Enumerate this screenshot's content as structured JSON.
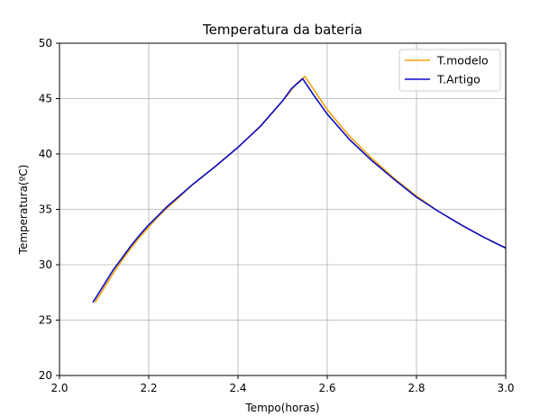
{
  "chart_data": {
    "type": "line",
    "title": "Temperatura da bateria",
    "xlabel": "Tempo(horas)",
    "ylabel": "Temperatura(ºC)",
    "xlim": [
      2.0,
      3.0
    ],
    "ylim": [
      20,
      50
    ],
    "xticks": [
      "2.0",
      "2.2",
      "2.4",
      "2.6",
      "2.8",
      "3.0"
    ],
    "yticks": [
      "20",
      "25",
      "30",
      "35",
      "40",
      "45",
      "50"
    ],
    "grid": true,
    "legend": "top-right",
    "series": [
      {
        "name": "T.modelo",
        "color": "#f0a30a",
        "x": [
          2.08,
          2.1,
          2.12,
          2.14,
          2.16,
          2.18,
          2.2,
          2.22,
          2.24,
          2.26,
          2.3,
          2.35,
          2.4,
          2.45,
          2.5,
          2.53,
          2.55,
          2.58,
          2.6,
          2.65,
          2.7,
          2.75,
          2.8,
          2.85,
          2.9,
          2.95,
          3.0
        ],
        "y": [
          26.6,
          27.9,
          29.2,
          30.4,
          31.5,
          32.5,
          33.4,
          34.3,
          35.1,
          35.8,
          37.3,
          38.9,
          40.6,
          42.5,
          44.8,
          46.3,
          47.0,
          45.2,
          44.0,
          41.6,
          39.6,
          37.8,
          36.2,
          34.8,
          33.6,
          32.5,
          31.5
        ]
      },
      {
        "name": "T.Artigo",
        "color": "#0a0ac8",
        "x": [
          2.075,
          2.1,
          2.12,
          2.14,
          2.16,
          2.18,
          2.2,
          2.22,
          2.24,
          2.26,
          2.3,
          2.35,
          2.4,
          2.45,
          2.5,
          2.52,
          2.545,
          2.57,
          2.6,
          2.65,
          2.7,
          2.75,
          2.8,
          2.85,
          2.9,
          2.95,
          3.0
        ],
        "y": [
          26.6,
          28.2,
          29.5,
          30.6,
          31.7,
          32.7,
          33.6,
          34.4,
          35.2,
          35.9,
          37.3,
          38.9,
          40.6,
          42.5,
          44.8,
          45.9,
          46.8,
          45.3,
          43.6,
          41.3,
          39.4,
          37.7,
          36.1,
          34.8,
          33.6,
          32.5,
          31.5
        ]
      }
    ]
  }
}
